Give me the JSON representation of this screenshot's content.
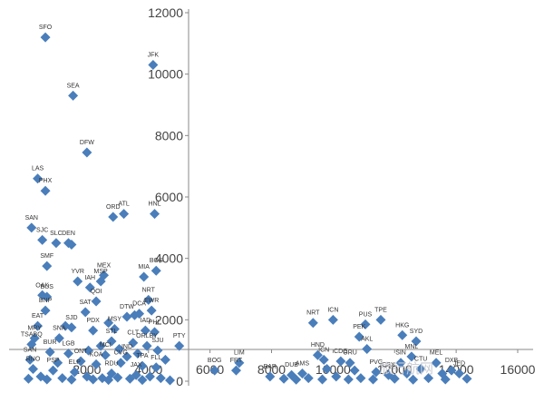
{
  "chart_data": {
    "type": "scatter",
    "title": "",
    "xlabel": "",
    "ylabel": "",
    "xlim": [
      0,
      16000
    ],
    "ylim": [
      0,
      12000
    ],
    "x_ticks": [
      "2000",
      "4000",
      "6000",
      "8000",
      "10000",
      "12000",
      "14000",
      "16000"
    ],
    "y_ticks": [
      "0",
      "2000",
      "4000",
      "6000",
      "8000",
      "10000",
      "12000"
    ],
    "marker_color": "#4a7ebb",
    "grid": false,
    "watermark": "旅行航网",
    "series": [
      {
        "points": [
          {
            "x": 650,
            "y": 11200,
            "label": "SFO"
          },
          {
            "x": 4150,
            "y": 10300,
            "label": "JFK"
          },
          {
            "x": 1550,
            "y": 9300,
            "label": "SEA"
          },
          {
            "x": 2000,
            "y": 7450,
            "label": "DFW"
          },
          {
            "x": 400,
            "y": 6600,
            "label": "LAS"
          },
          {
            "x": 650,
            "y": 6200,
            "label": "PHX"
          },
          {
            "x": 3200,
            "y": 5450,
            "label": "ATL"
          },
          {
            "x": 2850,
            "y": 5350,
            "label": "ORD"
          },
          {
            "x": 4200,
            "y": 5450,
            "label": "HNL"
          },
          {
            "x": 200,
            "y": 5000,
            "label": "SAN"
          },
          {
            "x": 550,
            "y": 4600,
            "label": "SJC"
          },
          {
            "x": 1000,
            "y": 4500,
            "label": "SLC"
          },
          {
            "x": 1400,
            "y": 4500,
            "label": "DEN"
          },
          {
            "x": 1500,
            "y": 4450,
            "label": ""
          },
          {
            "x": 700,
            "y": 3750,
            "label": "SMF"
          },
          {
            "x": 4250,
            "y": 3600,
            "label": "BOS"
          },
          {
            "x": 3850,
            "y": 3400,
            "label": "MIA"
          },
          {
            "x": 2550,
            "y": 3450,
            "label": "MEX"
          },
          {
            "x": 2450,
            "y": 3250,
            "label": "MSP"
          },
          {
            "x": 1700,
            "y": 3250,
            "label": "YVR"
          },
          {
            "x": 2100,
            "y": 3050,
            "label": "IAH"
          },
          {
            "x": 550,
            "y": 2800,
            "label": "OAK"
          },
          {
            "x": 700,
            "y": 2750,
            "label": "BUS"
          },
          {
            "x": 2300,
            "y": 2600,
            "label": "QOI"
          },
          {
            "x": 4000,
            "y": 2650,
            "label": "NRT"
          },
          {
            "x": 650,
            "y": 2300,
            "label": "BNP"
          },
          {
            "x": 1950,
            "y": 2250,
            "label": "SAT"
          },
          {
            "x": 3700,
            "y": 2200,
            "label": "DCA"
          },
          {
            "x": 4100,
            "y": 2300,
            "label": "EWR"
          },
          {
            "x": 3300,
            "y": 2100,
            "label": "DTW"
          },
          {
            "x": 3550,
            "y": 2150,
            "label": ""
          },
          {
            "x": 400,
            "y": 1800,
            "label": "EAT"
          },
          {
            "x": 1500,
            "y": 1750,
            "label": "SJD"
          },
          {
            "x": 2200,
            "y": 1650,
            "label": "PDX"
          },
          {
            "x": 2900,
            "y": 1700,
            "label": "MSY"
          },
          {
            "x": 3900,
            "y": 1650,
            "label": "IAD"
          },
          {
            "x": 4200,
            "y": 1600,
            "label": "PHL"
          },
          {
            "x": 5000,
            "y": 1150,
            "label": "PTY"
          },
          {
            "x": 300,
            "y": 1400,
            "label": "MRY"
          },
          {
            "x": 1100,
            "y": 1400,
            "label": "SNA"
          },
          {
            "x": 2800,
            "y": 1300,
            "label": "STL"
          },
          {
            "x": 200,
            "y": 1200,
            "label": "TSABQ"
          },
          {
            "x": 3500,
            "y": 1250,
            "label": "CLT"
          },
          {
            "x": 3950,
            "y": 1150,
            "label": "ORLBY"
          },
          {
            "x": 4300,
            "y": 1000,
            "label": "SJU"
          },
          {
            "x": 800,
            "y": 950,
            "label": "BUR"
          },
          {
            "x": 1400,
            "y": 900,
            "label": "LGB"
          },
          {
            "x": 2600,
            "y": 850,
            "label": "MCI"
          },
          {
            "x": 3300,
            "y": 800,
            "label": "IND"
          },
          {
            "x": 150,
            "y": 700,
            "label": "SAN"
          },
          {
            "x": 1800,
            "y": 650,
            "label": "ONT"
          },
          {
            "x": 2300,
            "y": 550,
            "label": "KOA"
          },
          {
            "x": 3100,
            "y": 600,
            "label": "CVG"
          },
          {
            "x": 3800,
            "y": 500,
            "label": "TPA"
          },
          {
            "x": 4250,
            "y": 450,
            "label": "FLL"
          },
          {
            "x": 250,
            "y": 400,
            "label": "RNO"
          },
          {
            "x": 900,
            "y": 350,
            "label": "PSP"
          },
          {
            "x": 1600,
            "y": 300,
            "label": "ELP"
          },
          {
            "x": 2800,
            "y": 250,
            "label": "RDU"
          },
          {
            "x": 3600,
            "y": 200,
            "label": "JAX"
          },
          {
            "x": 4050,
            "y": 150,
            "label": ""
          },
          {
            "x": 500,
            "y": 150,
            "label": ""
          },
          {
            "x": 1200,
            "y": 100,
            "label": ""
          },
          {
            "x": 2000,
            "y": 150,
            "label": ""
          },
          {
            "x": 2500,
            "y": 100,
            "label": ""
          },
          {
            "x": 3000,
            "y": 120,
            "label": ""
          },
          {
            "x": 3400,
            "y": 80,
            "label": ""
          },
          {
            "x": 4400,
            "y": 100,
            "label": ""
          },
          {
            "x": 100,
            "y": 80,
            "label": ""
          },
          {
            "x": 700,
            "y": 60,
            "label": ""
          },
          {
            "x": 1500,
            "y": 50,
            "label": ""
          },
          {
            "x": 2200,
            "y": 60,
            "label": ""
          },
          {
            "x": 2700,
            "y": 40,
            "label": ""
          },
          {
            "x": 3800,
            "y": 40,
            "label": ""
          },
          {
            "x": 4700,
            "y": 30,
            "label": ""
          },
          {
            "x": 1050,
            "y": 600,
            "label": ""
          },
          {
            "x": 2050,
            "y": 1000,
            "label": ""
          },
          {
            "x": 2450,
            "y": 1150,
            "label": ""
          },
          {
            "x": 3050,
            "y": 1050,
            "label": ""
          },
          {
            "x": 3650,
            "y": 900,
            "label": ""
          },
          {
            "x": 4550,
            "y": 700,
            "label": ""
          },
          {
            "x": 1300,
            "y": 1800,
            "label": ""
          },
          {
            "x": 2700,
            "y": 1900,
            "label": ""
          },
          {
            "x": 6150,
            "y": 350,
            "label": "BOG"
          },
          {
            "x": 6950,
            "y": 600,
            "label": "LIM"
          },
          {
            "x": 6850,
            "y": 350,
            "label": "FRT"
          },
          {
            "x": 7950,
            "y": 150,
            "label": "BAR"
          },
          {
            "x": 8650,
            "y": 200,
            "label": "DUB"
          },
          {
            "x": 9000,
            "y": 250,
            "label": "AMS"
          },
          {
            "x": 9350,
            "y": 1900,
            "label": "NRT"
          },
          {
            "x": 9500,
            "y": 850,
            "label": "HND"
          },
          {
            "x": 9700,
            "y": 700,
            "label": "ICN"
          },
          {
            "x": 10000,
            "y": 2000,
            "label": "ICN"
          },
          {
            "x": 10250,
            "y": 650,
            "label": "CDG"
          },
          {
            "x": 10550,
            "y": 600,
            "label": "GRU"
          },
          {
            "x": 10850,
            "y": 1450,
            "label": "PEK"
          },
          {
            "x": 11050,
            "y": 1850,
            "label": "PUS"
          },
          {
            "x": 11100,
            "y": 1050,
            "label": "AKL"
          },
          {
            "x": 11550,
            "y": 2000,
            "label": "TPE"
          },
          {
            "x": 11400,
            "y": 300,
            "label": "PVG"
          },
          {
            "x": 11800,
            "y": 200,
            "label": "CSX"
          },
          {
            "x": 12250,
            "y": 1500,
            "label": "HKG"
          },
          {
            "x": 12700,
            "y": 1300,
            "label": "SYD"
          },
          {
            "x": 12200,
            "y": 600,
            "label": "SIN"
          },
          {
            "x": 12550,
            "y": 800,
            "label": "MNL"
          },
          {
            "x": 12850,
            "y": 400,
            "label": "CTU"
          },
          {
            "x": 13350,
            "y": 600,
            "label": "MEL"
          },
          {
            "x": 13850,
            "y": 350,
            "label": "DXB"
          },
          {
            "x": 14100,
            "y": 250,
            "label": "JED"
          },
          {
            "x": 8400,
            "y": 80,
            "label": ""
          },
          {
            "x": 8800,
            "y": 50,
            "label": ""
          },
          {
            "x": 9200,
            "y": 100,
            "label": ""
          },
          {
            "x": 9650,
            "y": 60,
            "label": ""
          },
          {
            "x": 10100,
            "y": 150,
            "label": ""
          },
          {
            "x": 10500,
            "y": 60,
            "label": ""
          },
          {
            "x": 10900,
            "y": 100,
            "label": ""
          },
          {
            "x": 11300,
            "y": 60,
            "label": ""
          },
          {
            "x": 12000,
            "y": 80,
            "label": ""
          },
          {
            "x": 12600,
            "y": 50,
            "label": ""
          },
          {
            "x": 13100,
            "y": 100,
            "label": ""
          },
          {
            "x": 13650,
            "y": 60,
            "label": ""
          },
          {
            "x": 14350,
            "y": 80,
            "label": ""
          },
          {
            "x": 9800,
            "y": 400,
            "label": ""
          },
          {
            "x": 10700,
            "y": 350,
            "label": ""
          },
          {
            "x": 12400,
            "y": 250,
            "label": ""
          },
          {
            "x": 13550,
            "y": 250,
            "label": ""
          }
        ]
      }
    ]
  }
}
